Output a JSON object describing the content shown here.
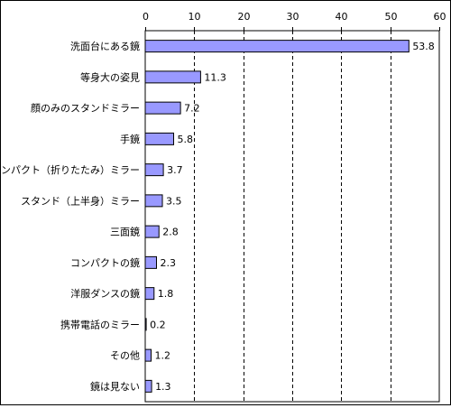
{
  "chart_data": {
    "type": "bar",
    "orientation": "horizontal",
    "categories": [
      "洗面台にある鏡",
      "等身大の姿見",
      "顔のみのスタンドミラー",
      "手鏡",
      "コンパクト（折りたたみ）ミラー",
      "スタンド（上半身）ミラー",
      "三面鏡",
      "コンパクトの鏡",
      "洋服ダンスの鏡",
      "携帯電話のミラー",
      "その他",
      "鏡は見ない"
    ],
    "values": [
      53.8,
      11.3,
      7.2,
      5.8,
      3.7,
      3.5,
      2.8,
      2.3,
      1.8,
      0.2,
      1.2,
      1.3
    ],
    "value_labels": [
      "53.8",
      "11.3",
      "7.2",
      "5.8",
      "3.7",
      "3.5",
      "2.8",
      "2.3",
      "1.8",
      "0.2",
      "1.2",
      "1.3"
    ],
    "xlim": [
      0,
      60
    ],
    "xticks": [
      "0",
      "10",
      "20",
      "30",
      "40",
      "50",
      "60"
    ],
    "xaxis_position": "top",
    "grid": "vertical dashed",
    "bar_color": "#9999ff",
    "bar_edge_color": "#000000"
  }
}
